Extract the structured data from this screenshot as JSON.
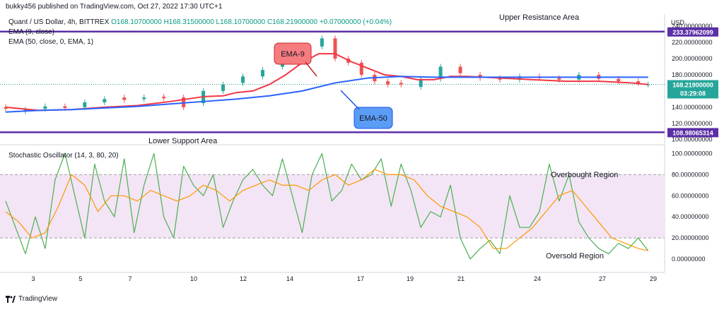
{
  "header": {
    "published": "bukky456 published on TradingView.com, Oct 27, 2022 17:30 UTC+1"
  },
  "price_pane": {
    "symbol": "Quant / US Dollar, 4h, BITTREX",
    "ohlc": {
      "o": "O168.10700000",
      "h": "H168.31500000",
      "l": "L168.10700000",
      "c": "C168.21900000",
      "chg": "+0.07000000 (+0.04%)"
    },
    "ema9_label": "EMA (9, close)",
    "ema50_label": "EMA (50, close, 0, EMA, 1)",
    "currency": "USD"
  },
  "osc_pane": {
    "label": "Stochastic Oscillator (14, 3, 80, 20)"
  },
  "annotations": {
    "upper": "Upper Resistance Area",
    "lower": "Lower Support Area",
    "ema9": "EMA-9",
    "ema50": "EMA-50",
    "overbought": "Overbought Region",
    "oversold": "Oversold Region"
  },
  "badges": {
    "upper": "233.37962099",
    "price": "168.21900000",
    "timer": "03:29:08",
    "lower": "108.98065314"
  },
  "footer": {
    "brand": "TradingView"
  },
  "colors": {
    "up": "#26a69a",
    "down": "#ef5350",
    "ema9": "#f23645",
    "ema50": "#2962ff",
    "level": "#5b2ea6",
    "k": "#4caf50",
    "d": "#ff9800",
    "band": "#f3e5f5"
  },
  "chart_data": [
    {
      "type": "candlestick",
      "title": "Quant / US Dollar, 4h, BITTREX",
      "x_ticks": [
        "3",
        "5",
        "7",
        "10",
        "12",
        "14",
        "17",
        "19",
        "21",
        "24",
        "27",
        "29"
      ],
      "y_ticks": [
        "100.00000000",
        "120.00000000",
        "140.00000000",
        "160.00000000",
        "180.00000000",
        "200.00000000",
        "220.00000000",
        "240.00000000"
      ],
      "ylim": [
        98,
        248
      ],
      "horizontal_levels": [
        {
          "name": "Upper Resistance Area",
          "value": 233.38
        },
        {
          "name": "Lower Support Area",
          "value": 108.98
        }
      ],
      "last_price": 168.219,
      "series": [
        {
          "name": "EMA (9, close)",
          "x": [
            0,
            10,
            20,
            30,
            40,
            50,
            60,
            66,
            70,
            75,
            80,
            85,
            90,
            95,
            100,
            105,
            110,
            115,
            120,
            125,
            130,
            135,
            140,
            150,
            160,
            170,
            180,
            190,
            195
          ],
          "values": [
            140,
            136,
            137,
            140,
            142,
            147,
            153,
            154,
            158,
            160,
            168,
            180,
            195,
            206,
            206,
            196,
            188,
            180,
            178,
            174,
            174,
            178,
            178,
            176,
            174,
            172,
            172,
            170,
            168
          ]
        },
        {
          "name": "EMA (50, close, 0, EMA, 1)",
          "x": [
            0,
            10,
            20,
            30,
            40,
            50,
            60,
            70,
            80,
            90,
            100,
            110,
            120,
            130,
            140,
            150,
            160,
            170,
            180,
            190,
            195
          ],
          "values": [
            134,
            136,
            137,
            139,
            141,
            144,
            147,
            150,
            154,
            160,
            170,
            176,
            178,
            177,
            177,
            177,
            177,
            177,
            177,
            177,
            177
          ]
        },
        {
          "name": "ohlc",
          "x": [
            0,
            6,
            12,
            18,
            24,
            30,
            36,
            42,
            48,
            54,
            60,
            66,
            72,
            78,
            84,
            90,
            96,
            100,
            104,
            108,
            112,
            116,
            120,
            126,
            132,
            138,
            144,
            150,
            156,
            162,
            168,
            174,
            180,
            186,
            192,
            195
          ],
          "values": [
            [
              140,
              138
            ],
            [
              135,
              137
            ],
            [
              138,
              141
            ],
            [
              141,
              139
            ],
            [
              140,
              146
            ],
            [
              146,
              150
            ],
            [
              152,
              149
            ],
            [
              150,
              152
            ],
            [
              153,
              151
            ],
            [
              152,
              140
            ],
            [
              145,
              160
            ],
            [
              160,
              168
            ],
            [
              170,
              178
            ],
            [
              178,
              186
            ],
            [
              190,
              200
            ],
            [
              200,
              215
            ],
            [
              215,
              225
            ],
            [
              225,
              200
            ],
            [
              200,
              195
            ],
            [
              195,
              180
            ],
            [
              180,
              172
            ],
            [
              172,
              168
            ],
            [
              170,
              168
            ],
            [
              165,
              175
            ],
            [
              175,
              190
            ],
            [
              190,
              182
            ],
            [
              180,
              176
            ],
            [
              176,
              174
            ],
            [
              174,
              178
            ],
            [
              178,
              176
            ],
            [
              176,
              174
            ],
            [
              174,
              180
            ],
            [
              180,
              175
            ],
            [
              175,
              172
            ],
            [
              172,
              170
            ],
            [
              168,
              168
            ]
          ]
        }
      ]
    },
    {
      "type": "line",
      "title": "Stochastic Oscillator (14, 3, 80, 20)",
      "y_ticks": [
        "0.00000000",
        "20.00000000",
        "40.00000000",
        "60.00000000",
        "80.00000000",
        "100.00000000"
      ],
      "ylim": [
        -10,
        105
      ],
      "bands": {
        "upper": 80,
        "lower": 20
      },
      "series": [
        {
          "name": "%K",
          "x": [
            0,
            3,
            6,
            9,
            12,
            15,
            18,
            21,
            24,
            27,
            30,
            33,
            36,
            39,
            42,
            45,
            48,
            51,
            54,
            57,
            60,
            63,
            66,
            69,
            72,
            75,
            78,
            81,
            84,
            87,
            90,
            93,
            96,
            99,
            102,
            105,
            108,
            111,
            114,
            117,
            120,
            123,
            126,
            129,
            132,
            135,
            138,
            141,
            144,
            147,
            150,
            153,
            156,
            159,
            162,
            165,
            168,
            171,
            174,
            177,
            180,
            183,
            186,
            189,
            192,
            195
          ],
          "values": [
            55,
            30,
            5,
            40,
            10,
            75,
            100,
            60,
            20,
            90,
            55,
            40,
            95,
            25,
            70,
            100,
            40,
            20,
            88,
            70,
            60,
            80,
            30,
            55,
            75,
            85,
            70,
            60,
            95,
            60,
            25,
            80,
            100,
            55,
            65,
            90,
            75,
            80,
            95,
            50,
            90,
            65,
            30,
            45,
            40,
            70,
            20,
            0,
            10,
            18,
            5,
            60,
            30,
            30,
            45,
            90,
            55,
            80,
            35,
            20,
            10,
            5,
            15,
            10,
            20,
            8
          ]
        },
        {
          "name": "%D",
          "x": [
            0,
            4,
            8,
            12,
            16,
            20,
            24,
            28,
            32,
            36,
            40,
            44,
            48,
            52,
            56,
            60,
            64,
            68,
            72,
            76,
            80,
            84,
            88,
            92,
            96,
            100,
            104,
            108,
            112,
            116,
            120,
            124,
            128,
            132,
            136,
            140,
            144,
            148,
            152,
            156,
            160,
            164,
            168,
            172,
            176,
            180,
            184,
            188,
            192,
            195
          ],
          "values": [
            45,
            35,
            20,
            25,
            50,
            80,
            70,
            45,
            60,
            60,
            55,
            65,
            60,
            55,
            60,
            70,
            65,
            55,
            65,
            70,
            75,
            70,
            70,
            65,
            75,
            80,
            70,
            75,
            85,
            80,
            80,
            75,
            60,
            50,
            45,
            40,
            30,
            10,
            10,
            20,
            30,
            45,
            60,
            65,
            50,
            35,
            20,
            15,
            10,
            8
          ]
        }
      ]
    }
  ]
}
